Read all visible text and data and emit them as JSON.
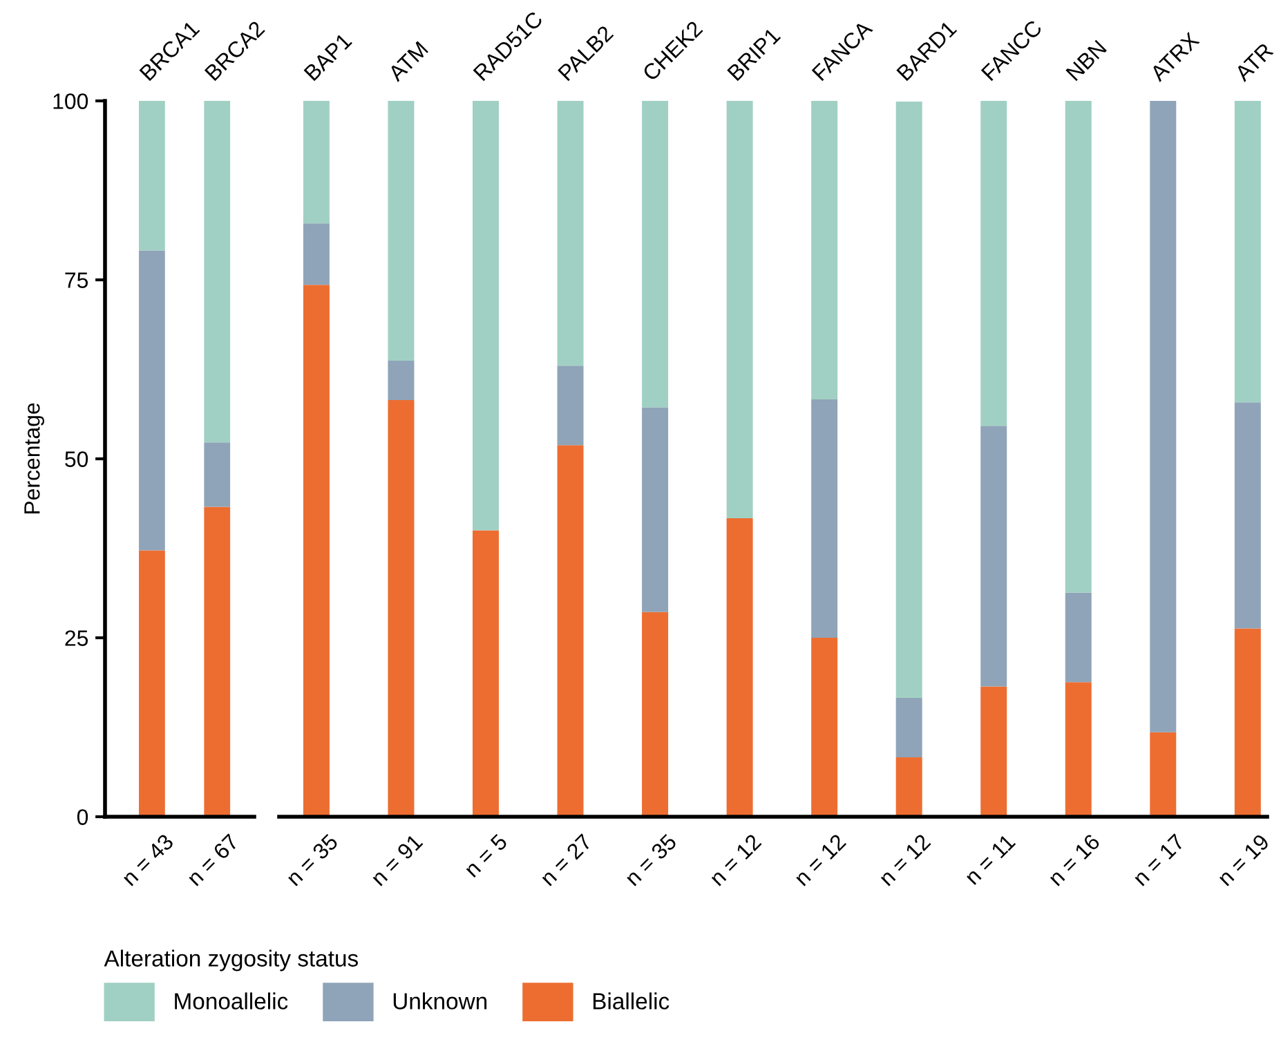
{
  "chart_data": [
    {
      "type": "bar",
      "stacked": true,
      "ylabel": "Percentage",
      "legend_title": "Alteration zygosity status",
      "legend": "bottom",
      "ylim": [
        0,
        100
      ],
      "yticks": [
        0,
        25,
        50,
        75,
        100
      ],
      "grid": false,
      "categories": [
        "BRCA1",
        "BRCA2"
      ],
      "series": [
        {
          "name": "Biallelic",
          "color": "#ed6d31",
          "values": [
            37.2,
            43.3
          ]
        },
        {
          "name": "Unknown",
          "color": "#8fa4b8",
          "values": [
            41.9,
            9.0
          ]
        },
        {
          "name": "Monoallelic",
          "color": "#a0d0c3",
          "values": [
            20.9,
            47.8
          ]
        }
      ],
      "annotations": [
        "n = 43",
        "n = 67"
      ]
    },
    {
      "type": "bar",
      "stacked": true,
      "ylim": [
        0,
        100
      ],
      "tick_labels": "x",
      "grid": false,
      "categories": [
        "BAP1",
        "ATM",
        "RAD51C",
        "PALB2",
        "CHEK2",
        "BRIP1",
        "FANCA",
        "BARD1",
        "FANCC",
        "NBN",
        "ATRX",
        "ATR"
      ],
      "series": [
        {
          "color": "#ed6d31",
          "values": [
            74.3,
            58.2,
            40.0,
            51.9,
            28.6,
            41.7,
            25.0,
            8.3,
            18.2,
            18.8,
            11.8,
            26.3
          ]
        },
        {
          "color": "#8fa4b8",
          "values": [
            8.6,
            5.5,
            0,
            11.1,
            28.6,
            0,
            33.3,
            8.3,
            36.4,
            12.5,
            88.2,
            31.6
          ]
        },
        {
          "color": "#a0d0c3",
          "values": [
            17.1,
            36.3,
            60.0,
            37.0,
            42.8,
            58.3,
            41.7,
            83.3,
            45.5,
            68.8,
            0,
            42.1
          ]
        }
      ],
      "annotations": [
        "n = 35",
        "n = 91",
        "n = 5",
        "n = 27",
        "n = 35",
        "n = 12",
        "n = 12",
        "n = 12",
        "n = 11",
        "n = 16",
        "n = 17",
        "n = 19"
      ]
    }
  ]
}
